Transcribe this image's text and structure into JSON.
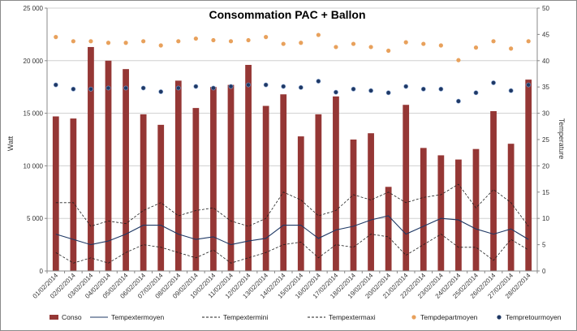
{
  "chart_data": {
    "type": "bar",
    "title": "Consommation PAC + Ballon",
    "ylabel": "Watt",
    "y2label": "Temperature",
    "ylim": [
      0,
      25000
    ],
    "y2lim": [
      0,
      50
    ],
    "yticks": [
      "0",
      "5 000",
      "10 000",
      "15 000",
      "20 000",
      "25 000"
    ],
    "y2ticks": [
      "0",
      "5",
      "10",
      "15",
      "20",
      "25",
      "30",
      "35",
      "40",
      "45",
      "50"
    ],
    "grid": true,
    "legend_position": "bottom",
    "categories": [
      "01/02/2014",
      "02/02/2014",
      "03/02/2014",
      "04/02/2014",
      "05/02/2014",
      "06/02/2014",
      "07/02/2014",
      "08/02/2014",
      "09/02/2014",
      "10/02/2014",
      "11/02/2014",
      "12/02/2014",
      "13/02/2014",
      "14/02/2014",
      "15/02/2014",
      "16/02/2014",
      "17/02/2014",
      "18/02/2014",
      "19/02/2014",
      "20/02/2014",
      "21/02/2014",
      "22/02/2014",
      "23/02/2014",
      "24/02/2014",
      "25/02/2014",
      "26/02/2014",
      "27/02/2014",
      "28/02/2014"
    ],
    "series": [
      {
        "name": "Conso",
        "kind": "bar",
        "axis": "left",
        "color": "#953735",
        "values": [
          14700,
          14500,
          21300,
          20000,
          19200,
          14900,
          13900,
          18100,
          15500,
          17500,
          17700,
          19600,
          15700,
          16800,
          12800,
          14900,
          16600,
          12500,
          13100,
          8000,
          15800,
          11700,
          11000,
          10600,
          11600,
          15200,
          12100,
          18200
        ]
      },
      {
        "name": "Tempextermoyen",
        "kind": "line",
        "style": "solid",
        "axis": "right",
        "color": "#1f3864",
        "values": [
          7.0,
          6.0,
          5.0,
          5.7,
          7.0,
          8.7,
          8.7,
          7.0,
          6.0,
          6.5,
          5.0,
          5.7,
          6.2,
          8.7,
          8.7,
          6.2,
          7.8,
          8.5,
          9.7,
          10.5,
          7.0,
          8.5,
          10.0,
          9.7,
          8.0,
          7.0,
          8.0,
          6.0
        ]
      },
      {
        "name": "Tempextermini",
        "kind": "line",
        "style": "dashed",
        "axis": "right",
        "color": "#1f1f1f",
        "values": [
          3.5,
          1.5,
          2.5,
          1.5,
          3.5,
          5.0,
          4.5,
          3.5,
          2.5,
          4.0,
          1.5,
          2.5,
          3.5,
          5.0,
          5.5,
          2.5,
          5.0,
          4.5,
          7.0,
          6.5,
          3.0,
          5.0,
          7.0,
          4.5,
          4.5,
          2.0,
          6.0,
          4.0
        ]
      },
      {
        "name": "Tempextermaxi",
        "kind": "line",
        "style": "dashed",
        "axis": "right",
        "color": "#1f1f1f",
        "values": [
          13.0,
          13.0,
          8.5,
          9.5,
          9.0,
          11.5,
          13.0,
          10.5,
          11.5,
          12.0,
          9.5,
          8.5,
          10.0,
          15.0,
          13.5,
          10.5,
          11.5,
          14.5,
          13.5,
          15.0,
          13.0,
          14.0,
          14.5,
          16.5,
          12.0,
          15.5,
          13.0,
          8.5
        ]
      },
      {
        "name": "Tempdepartmoyen",
        "kind": "scatter",
        "axis": "right",
        "color": "#e8a15c",
        "values": [
          44.5,
          43.7,
          43.7,
          43.4,
          43.4,
          43.7,
          42.9,
          43.7,
          44.2,
          43.9,
          43.7,
          43.9,
          44.5,
          43.2,
          43.4,
          44.9,
          42.6,
          43.2,
          42.6,
          41.9,
          43.5,
          43.2,
          42.9,
          40.1,
          42.5,
          43.7,
          42.3,
          43.7
        ]
      },
      {
        "name": "Tempretourmoyen",
        "kind": "scatter",
        "axis": "right",
        "color": "#1f3864",
        "values": [
          35.4,
          34.6,
          34.6,
          34.8,
          34.8,
          34.8,
          34.1,
          34.8,
          35.1,
          34.8,
          35.1,
          35.4,
          35.4,
          35.1,
          34.9,
          36.1,
          34.0,
          34.6,
          34.3,
          33.9,
          35.1,
          34.6,
          34.6,
          32.3,
          33.9,
          35.8,
          34.3,
          35.4
        ]
      }
    ]
  }
}
